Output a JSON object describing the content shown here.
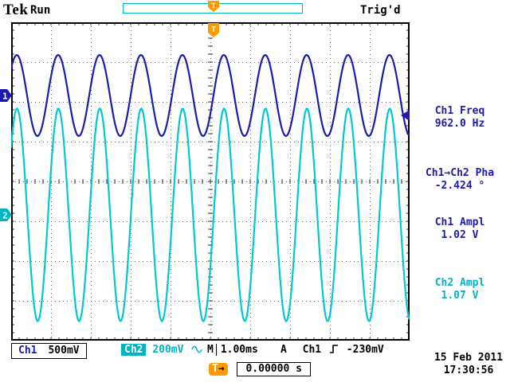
{
  "colors": {
    "ch1": "#1c1ca8",
    "ch2": "#00b4c4",
    "ch2_trace": "#00c8d4",
    "trigger_orange": "#ff9900",
    "grid_dot": "#666666"
  },
  "header": {
    "logo": "Tek",
    "acq_state": "Run",
    "trigger_status": "Trig'd",
    "trigger_marker_label": "T"
  },
  "channel_markers": {
    "ch1": "1",
    "ch2": "2"
  },
  "measurements": [
    {
      "label": "Ch1 Freq",
      "value": "962.0 Hz",
      "channel": "ch1"
    },
    {
      "label": "Ch1→Ch2 Pha",
      "value": "-2.424 °",
      "channel": "ch1"
    },
    {
      "label": "Ch1 Ampl",
      "value": "1.02 V",
      "channel": "ch1"
    },
    {
      "label": "Ch2 Ampl",
      "value": "1.07 V",
      "channel": "ch2"
    }
  ],
  "status_bar": {
    "ch1_label": "Ch1",
    "ch1_scale": "500mV",
    "ch2_label": "Ch2",
    "ch2_scale": "200mV",
    "ch2_coupling_icon": "sine-icon",
    "timebase_label": "M",
    "timebase_value": "1.00ms",
    "trigger_label": "A",
    "trigger_source": "Ch1",
    "trigger_slope_icon": "rising-edge-icon",
    "trigger_level": "-230mV"
  },
  "time_readout": {
    "marker_label": "T",
    "value": "0.00000 s"
  },
  "datetime": {
    "date": "15 Feb 2011",
    "time": "17:30:56"
  },
  "chart_data": {
    "type": "line",
    "title": "Oscilloscope traces",
    "time_per_div_ms": 1.0,
    "divisions": {
      "x": 10,
      "y": 8
    },
    "trigger_x_div": 5,
    "series": [
      {
        "name": "Ch1",
        "color": "#1c1ca8",
        "volts_per_div": 0.5,
        "amplitude_vpp_v": 1.02,
        "frequency_hz": 962.0,
        "phase_at_trigger_deg": -26.8,
        "center_div_from_top": 1.84
      },
      {
        "name": "Ch2",
        "color": "#00c8d4",
        "volts_per_div": 0.2,
        "amplitude_vpp_v": 1.07,
        "frequency_hz": 962.0,
        "phase_at_trigger_deg": -29.2,
        "center_div_from_top": 4.84
      }
    ],
    "trigger": {
      "source": "Ch1",
      "level_v": -0.23,
      "slope": "rising",
      "horizontal_position_s": 0.0
    }
  }
}
